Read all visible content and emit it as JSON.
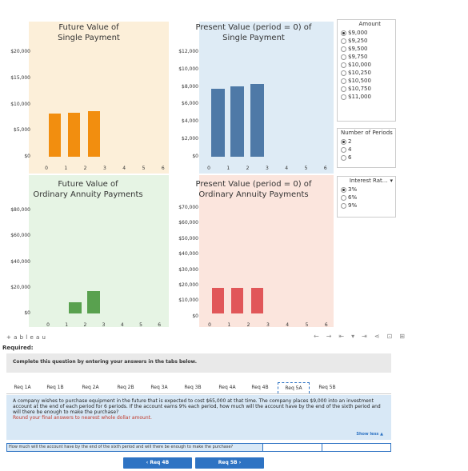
{
  "charts": {
    "fv_single": {
      "title_line1": "Future Value of",
      "title_line2": "Single Payment",
      "y_ticks": [
        "$20,000",
        "$15,000",
        "$10,000",
        "$5,000",
        "$0"
      ],
      "x_ticks": [
        "0",
        "1",
        "2",
        "3",
        "4",
        "5",
        "6"
      ],
      "bar_color": "#f28e0f"
    },
    "pv_single": {
      "title_line1": "Present Value (period = 0) of",
      "title_line2": "Single Payment",
      "y_ticks": [
        "$12,000",
        "$10,000",
        "$8,000",
        "$6,000",
        "$4,000",
        "$2,000",
        "$0"
      ],
      "x_ticks": [
        "0",
        "1",
        "2",
        "3",
        "4",
        "5",
        "6"
      ],
      "bar_color": "#4e79a7"
    },
    "fv_annuity": {
      "title_line1": "Future Value of",
      "title_line2": "Ordinary Annuity Payments",
      "y_ticks": [
        "$80,000",
        "$60,000",
        "$40,000",
        "$20,000",
        "$0"
      ],
      "x_ticks": [
        "0",
        "1",
        "2",
        "3",
        "4",
        "5",
        "6"
      ],
      "bar_color": "#59a14f"
    },
    "pv_annuity": {
      "title_line1": "Present Value (period = 0) of",
      "title_line2": "Ordinary Annuity Payments",
      "y_ticks": [
        "$70,000",
        "$60,000",
        "$50,000",
        "$40,000",
        "$30,000",
        "$20,000",
        "$10,000",
        "$0"
      ],
      "x_ticks": [
        "0",
        "1",
        "2",
        "3",
        "4",
        "5",
        "6"
      ],
      "bar_color": "#e15759"
    }
  },
  "chart_data": [
    {
      "type": "bar",
      "title": "Future Value of Single Payment",
      "categories": [
        "0",
        "1",
        "2"
      ],
      "values": [
        9000,
        9270,
        9548
      ],
      "ylim": [
        0,
        22000
      ]
    },
    {
      "type": "bar",
      "title": "Present Value (period = 0) of Single Payment",
      "categories": [
        "0",
        "1",
        "2"
      ],
      "values": [
        8483,
        8738,
        9000
      ],
      "ylim": [
        0,
        13000
      ]
    },
    {
      "type": "bar",
      "title": "Future Value of Ordinary Annuity Payments",
      "categories": [
        "1",
        "2"
      ],
      "values": [
        9000,
        18270
      ],
      "ylim": [
        0,
        85000
      ]
    },
    {
      "type": "bar",
      "title": "Present Value (period = 0) of Ordinary Annuity Payments",
      "categories": [
        "0",
        "1",
        "2"
      ],
      "values": [
        17221,
        17221,
        17221
      ],
      "ylim": [
        0,
        72000
      ]
    }
  ],
  "amount": {
    "label": "Amount",
    "options": [
      "$9,000",
      "$9,250",
      "$9,500",
      "$9,750",
      "$10,000",
      "$10,250",
      "$10,500",
      "$10,750",
      "$11,000"
    ],
    "selected": 0
  },
  "periods": {
    "label": "Number of Periods",
    "options": [
      "2",
      "4",
      "6"
    ],
    "selected": 0
  },
  "interest": {
    "label": "Interest Rat...",
    "options": [
      "3%",
      "6%",
      "9%"
    ],
    "selected": 0
  },
  "tableau_logo": "+ a b l e a u",
  "required_label": "Required:",
  "instruction": "Complete this question by entering your answers in the tabs below.",
  "tabs": [
    "Req 1A",
    "Req 1B",
    "Req 2A",
    "Req 2B",
    "Req 3A",
    "Req 3B",
    "Req 4A",
    "Req 4B",
    "Req 5A",
    "Req 5B"
  ],
  "active_tab": 8,
  "problem_text": "A company wishes to purchase equipment in the future that is expected to cost $65,000 at that time. The company places $9,000 into an investment account at the end of each period for 6 periods. If the account earns 9% each period, how much will the account have by the end of the sixth period and will there be enough to make the purchase?",
  "round_note": "Round your final answers to nearest whole dollar amount.",
  "show_less": "Show less ▲",
  "answer_prompt": "How much will the account have by the end of the sixth period and will there be enough to make the purchase?",
  "answer_value": "",
  "prev_button": "‹  Req 4B",
  "next_button": "Req 5B  ›"
}
